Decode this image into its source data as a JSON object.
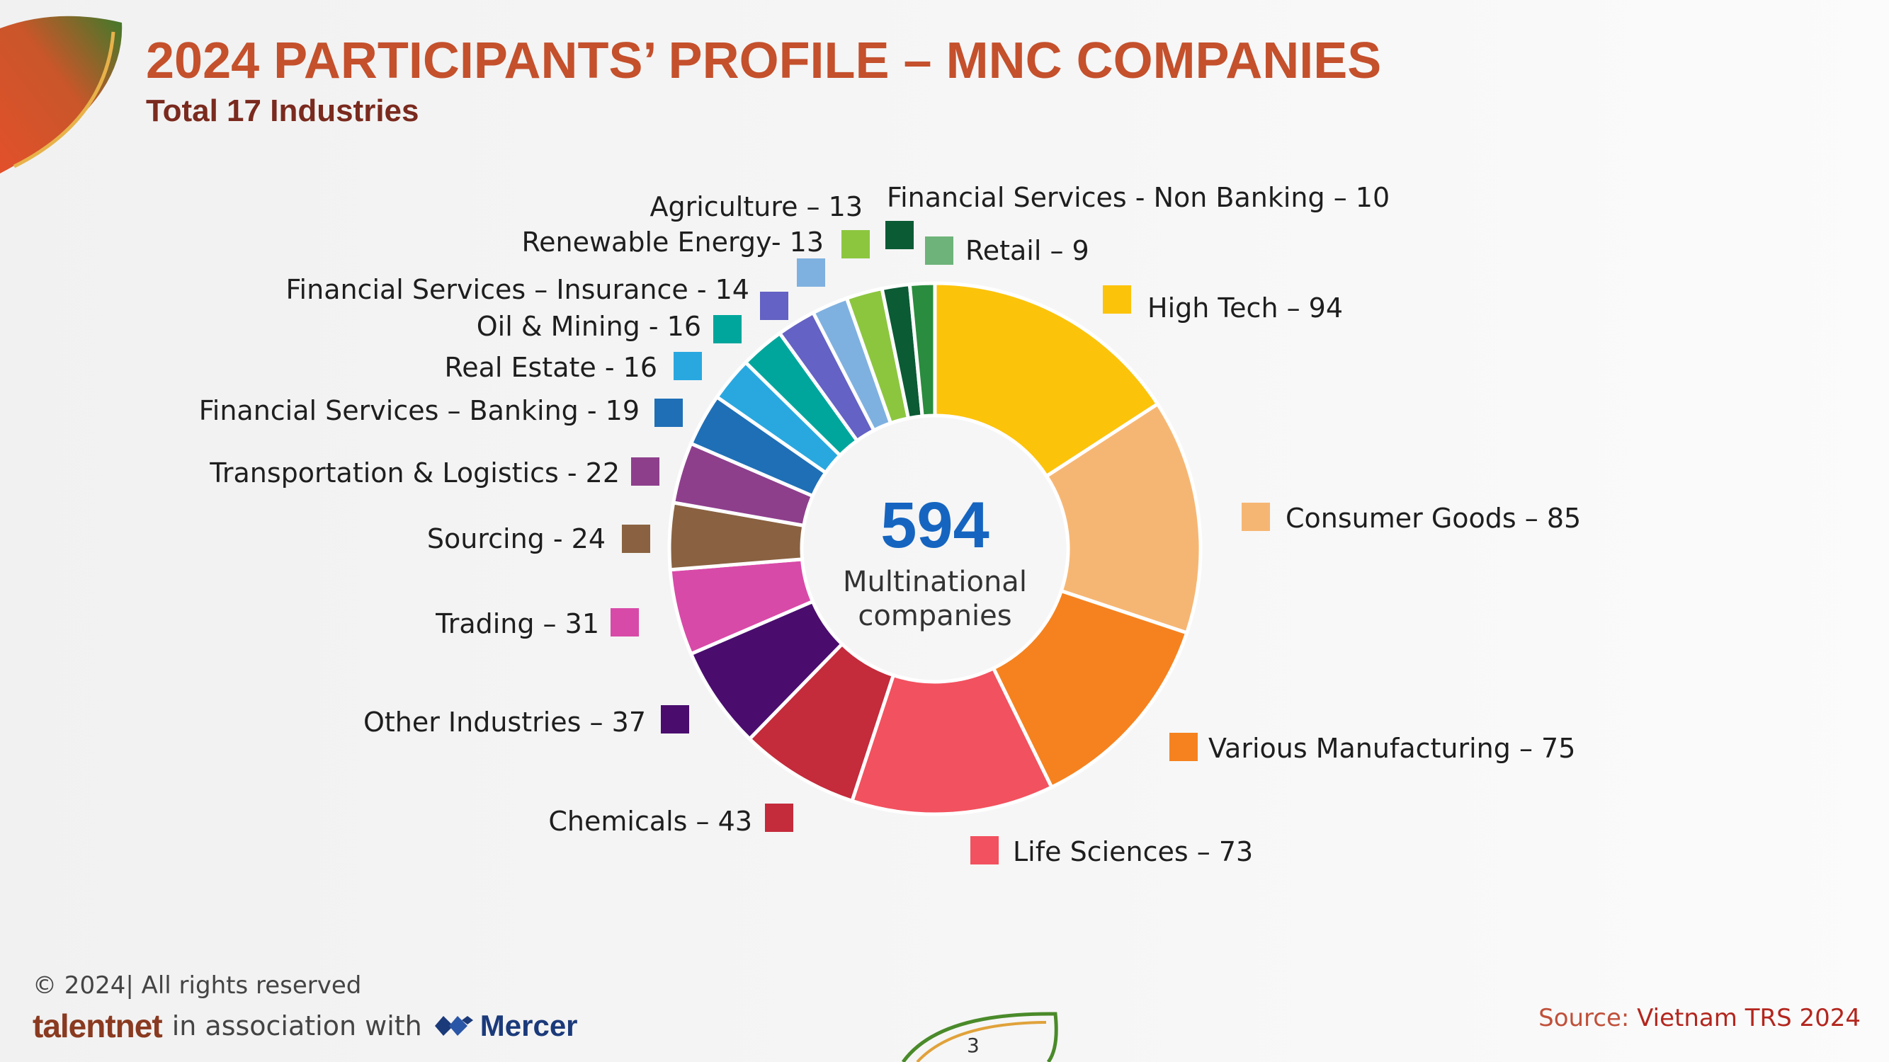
{
  "header": {
    "title": "2024 PARTICIPANTS’ PROFILE – MNC COMPANIES",
    "subtitle": "Total 17 Industries"
  },
  "center": {
    "total": "594",
    "caption_line1": "Multinational",
    "caption_line2": "companies"
  },
  "chart_data": {
    "type": "pie",
    "variant": "donut",
    "title": "",
    "categories": [
      "High Tech",
      "Consumer Goods",
      "Various Manufacturing",
      "Life Sciences",
      "Chemicals",
      "Other Industries",
      "Trading",
      "Sourcing",
      "Transportation & Logistics",
      "Financial Services – Banking",
      "Real Estate",
      "Oil & Mining",
      "Financial Services – Insurance",
      "Renewable Energy",
      "Agriculture",
      "Financial Services - Non Banking",
      "Retail"
    ],
    "values": [
      94,
      85,
      75,
      73,
      43,
      37,
      31,
      24,
      22,
      19,
      16,
      16,
      14,
      13,
      13,
      10,
      9
    ],
    "colors": [
      "#fcc30b",
      "#f6b673",
      "#f5821f",
      "#f2515f",
      "#c42b3b",
      "#4a0d6e",
      "#d84aa8",
      "#8a6241",
      "#8e3f8c",
      "#1f6fb6",
      "#29a8e0",
      "#00a69c",
      "#6462c4",
      "#7fb1e0",
      "#8cc63f",
      "#0b5b35",
      "#2a8c3e"
    ],
    "labels": [
      "High Tech – 94",
      "Consumer Goods – 85",
      "Various Manufacturing – 75",
      "Life Sciences – 73",
      "Chemicals – 43",
      "Other Industries – 37",
      "Trading – 31",
      "Sourcing - 24",
      "Transportation & Logistics - 22",
      "Financial Services – Banking - 19",
      "Real Estate - 16",
      "Oil & Mining - 16",
      "Financial Services – Insurance - 14",
      "Renewable Energy- 13",
      "Agriculture – 13",
      "Financial Services - Non Banking – 10",
      "Retail – 9"
    ],
    "legend_swatch_colors": [
      "#fcc30b",
      "#f6b673",
      "#f5821f",
      "#f2515f",
      "#c42b3b",
      "#4a0d6e",
      "#d84aa8",
      "#8a6241",
      "#8e3f8c",
      "#1f6fb6",
      "#29a8e0",
      "#00a69c",
      "#6462c4",
      "#7fb1e0",
      "#8cc63f",
      "#0b5b35",
      "#6db37a"
    ],
    "legend": "labels around donut"
  },
  "footer": {
    "copyright": "© 2024| All rights reserved",
    "brand": "talentnet",
    "association": "in association with",
    "partner": "Mercer",
    "source_prefix": "Source: ",
    "source_name": "Vietnam TRS 2024",
    "page_number": "3"
  }
}
